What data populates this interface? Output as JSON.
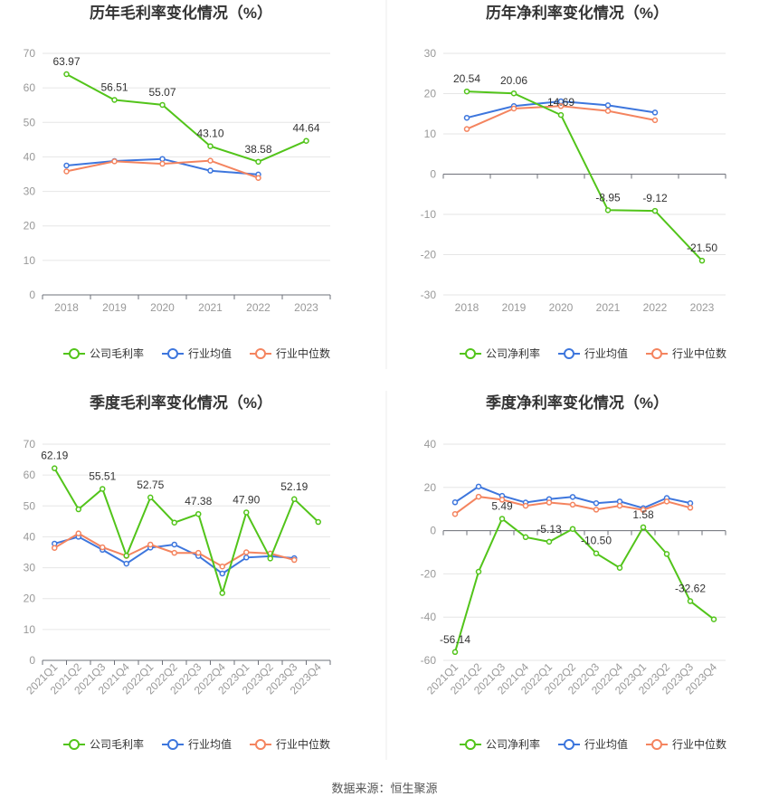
{
  "footer": {
    "source": "数据来源：恒生聚源"
  },
  "colors": {
    "company": "#52c41a",
    "avg": "#3d76dd",
    "median": "#f4845f",
    "grid": "#e6e6e6",
    "axis": "#6e7079",
    "divider": "#eeeeee"
  },
  "chart_data": [
    {
      "type": "line",
      "title": "历年毛利率变化情况（%）",
      "categories": [
        "2018",
        "2019",
        "2020",
        "2021",
        "2022",
        "2023"
      ],
      "ylim": [
        0,
        70
      ],
      "yticks": [
        0,
        10,
        20,
        30,
        40,
        50,
        60,
        70
      ],
      "rotate_x": false,
      "legend_position": "bottom",
      "series": [
        {
          "name": "公司毛利率",
          "color": "#52c41a",
          "values": [
            63.97,
            56.51,
            55.07,
            43.1,
            38.58,
            44.64
          ],
          "labels": [
            "63.97",
            "56.51",
            "55.07",
            "43.10",
            "38.58",
            "44.64"
          ]
        },
        {
          "name": "行业均值",
          "color": "#3d76dd",
          "values": [
            37.5,
            38.8,
            39.4,
            36.0,
            34.9,
            null
          ]
        },
        {
          "name": "行业中位数",
          "color": "#f4845f",
          "values": [
            35.8,
            38.7,
            38.0,
            38.9,
            33.9,
            null
          ]
        }
      ]
    },
    {
      "type": "line",
      "title": "历年净利率变化情况（%）",
      "categories": [
        "2018",
        "2019",
        "2020",
        "2021",
        "2022",
        "2023"
      ],
      "ylim": [
        -30,
        30
      ],
      "yticks": [
        -30,
        -20,
        -10,
        0,
        10,
        20,
        30
      ],
      "rotate_x": false,
      "legend_position": "bottom",
      "series": [
        {
          "name": "公司净利率",
          "color": "#52c41a",
          "values": [
            20.54,
            20.06,
            14.69,
            -8.95,
            -9.12,
            -21.5
          ],
          "labels": [
            "20.54",
            "20.06",
            "14.69",
            "-8.95",
            "-9.12",
            "-21.50"
          ]
        },
        {
          "name": "行业均值",
          "color": "#3d76dd",
          "values": [
            14.0,
            16.9,
            18.1,
            17.1,
            15.3,
            null
          ]
        },
        {
          "name": "行业中位数",
          "color": "#f4845f",
          "values": [
            11.2,
            16.3,
            16.9,
            15.7,
            13.4,
            null
          ]
        }
      ]
    },
    {
      "type": "line",
      "title": "季度毛利率变化情况（%）",
      "categories": [
        "2021Q1",
        "2021Q2",
        "2021Q3",
        "2021Q4",
        "2022Q1",
        "2022Q2",
        "2022Q3",
        "2022Q4",
        "2023Q1",
        "2023Q2",
        "2023Q3",
        "2023Q4"
      ],
      "ylim": [
        0,
        70
      ],
      "yticks": [
        0,
        10,
        20,
        30,
        40,
        50,
        60,
        70
      ],
      "rotate_x": true,
      "legend_position": "bottom",
      "series": [
        {
          "name": "公司毛利率",
          "color": "#52c41a",
          "values": [
            62.19,
            48.9,
            55.51,
            33.9,
            52.75,
            44.6,
            47.38,
            21.8,
            47.9,
            33.0,
            52.19,
            44.8
          ],
          "labels": [
            "62.19",
            "",
            "55.51",
            "",
            "52.75",
            "",
            "47.38",
            "",
            "47.90",
            "",
            "52.19",
            ""
          ]
        },
        {
          "name": "行业均值",
          "color": "#3d76dd",
          "values": [
            37.8,
            40.0,
            35.8,
            31.3,
            36.5,
            37.5,
            33.8,
            28.1,
            33.3,
            33.7,
            33.1,
            null
          ]
        },
        {
          "name": "行业中位数",
          "color": "#f4845f",
          "values": [
            36.4,
            41.1,
            36.6,
            33.8,
            37.5,
            34.8,
            34.8,
            30.4,
            35.0,
            34.6,
            32.5,
            null
          ]
        }
      ]
    },
    {
      "type": "line",
      "title": "季度净利率变化情况（%）",
      "categories": [
        "2021Q1",
        "2021Q2",
        "2021Q3",
        "2021Q4",
        "2022Q1",
        "2022Q2",
        "2022Q3",
        "2022Q4",
        "2023Q1",
        "2023Q2",
        "2023Q3",
        "2023Q4"
      ],
      "ylim": [
        -60,
        40
      ],
      "yticks": [
        -60,
        -40,
        -20,
        0,
        20,
        40
      ],
      "rotate_x": true,
      "legend_position": "bottom",
      "series": [
        {
          "name": "公司净利率",
          "color": "#52c41a",
          "values": [
            -56.14,
            -19.0,
            5.49,
            -3.0,
            -5.13,
            0.8,
            -10.5,
            -17.2,
            1.58,
            -10.8,
            -32.62,
            -41.0
          ],
          "labels": [
            "-56.14",
            "",
            "5.49",
            "",
            "-5.13",
            "",
            "-10.50",
            "",
            "1.58",
            "",
            "-32.62",
            ""
          ]
        },
        {
          "name": "行业均值",
          "color": "#3d76dd",
          "values": [
            13.1,
            20.4,
            16.1,
            13.0,
            14.6,
            15.6,
            12.7,
            13.5,
            10.4,
            15.1,
            12.7,
            null
          ]
        },
        {
          "name": "行业中位数",
          "color": "#f4845f",
          "values": [
            7.7,
            15.7,
            14.3,
            11.5,
            13.0,
            12.0,
            9.7,
            11.5,
            9.6,
            13.5,
            10.6,
            null
          ]
        }
      ]
    }
  ]
}
